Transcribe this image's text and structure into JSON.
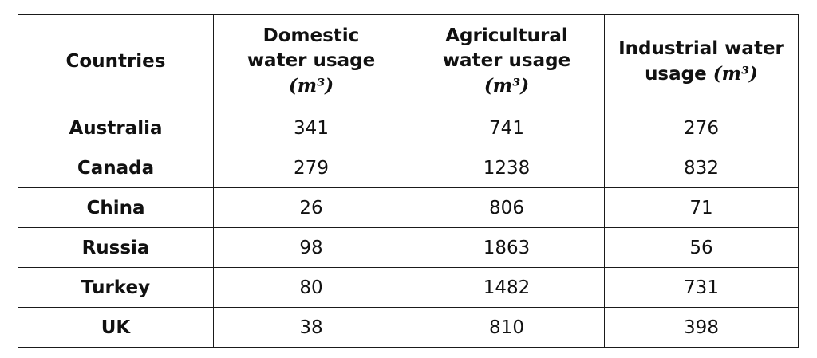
{
  "chart_data": {
    "type": "table",
    "columns": [
      {
        "label": "Countries",
        "unit": ""
      },
      {
        "label": "Domestic water usage",
        "unit": "(m³)"
      },
      {
        "label": "Agricultural water usage",
        "unit": "(m³)"
      },
      {
        "label": "Industrial water usage",
        "unit": "(m³)"
      }
    ],
    "rows": [
      {
        "country": "Australia",
        "domestic": "341",
        "agricultural": "741",
        "industrial": "276"
      },
      {
        "country": "Canada",
        "domestic": "279",
        "agricultural": "1238",
        "industrial": "832"
      },
      {
        "country": "China",
        "domestic": "26",
        "agricultural": "806",
        "industrial": "71"
      },
      {
        "country": "Russia",
        "domestic": "98",
        "agricultural": "1863",
        "industrial": "56"
      },
      {
        "country": "Turkey",
        "domestic": "80",
        "agricultural": "1482",
        "industrial": "731"
      },
      {
        "country": "UK",
        "domestic": "38",
        "agricultural": "810",
        "industrial": "398"
      }
    ]
  }
}
